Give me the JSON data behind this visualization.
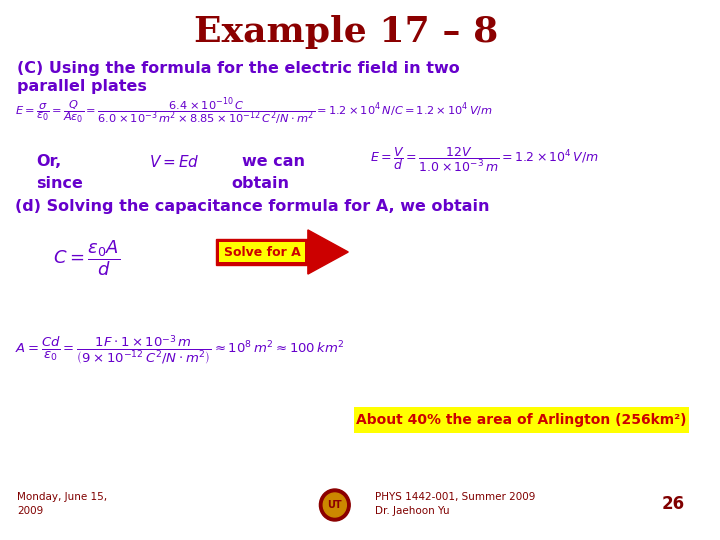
{
  "title": "Example 17 – 8",
  "title_color": "#8B0000",
  "bg_color": "#FFFFFF",
  "purple_color": "#6600CC",
  "dark_red_color": "#8B0000",
  "yellow_bg": "#FFFF00",
  "arrow_color": "#CC0000",
  "footer_color": "#800000",
  "slide_number": "26",
  "footer_left_1": "Monday, June 15,",
  "footer_left_2": "2009",
  "footer_center_1": "PHYS 1442-001, Summer 2009",
  "footer_center_2": "Dr. Jaehoon Yu",
  "line1": "(C) Using the formula for the electric field in two",
  "line2": "parallel plates",
  "line_or": "Or,",
  "line_wecan": "we can",
  "line_since": "since",
  "line_obtain": "obtain",
  "line_d": "(d) Solving the capacitance formula for A, we obtain",
  "solve_text": "Solve for A",
  "about_text": "About 40% the area of Arlington (256km²)"
}
